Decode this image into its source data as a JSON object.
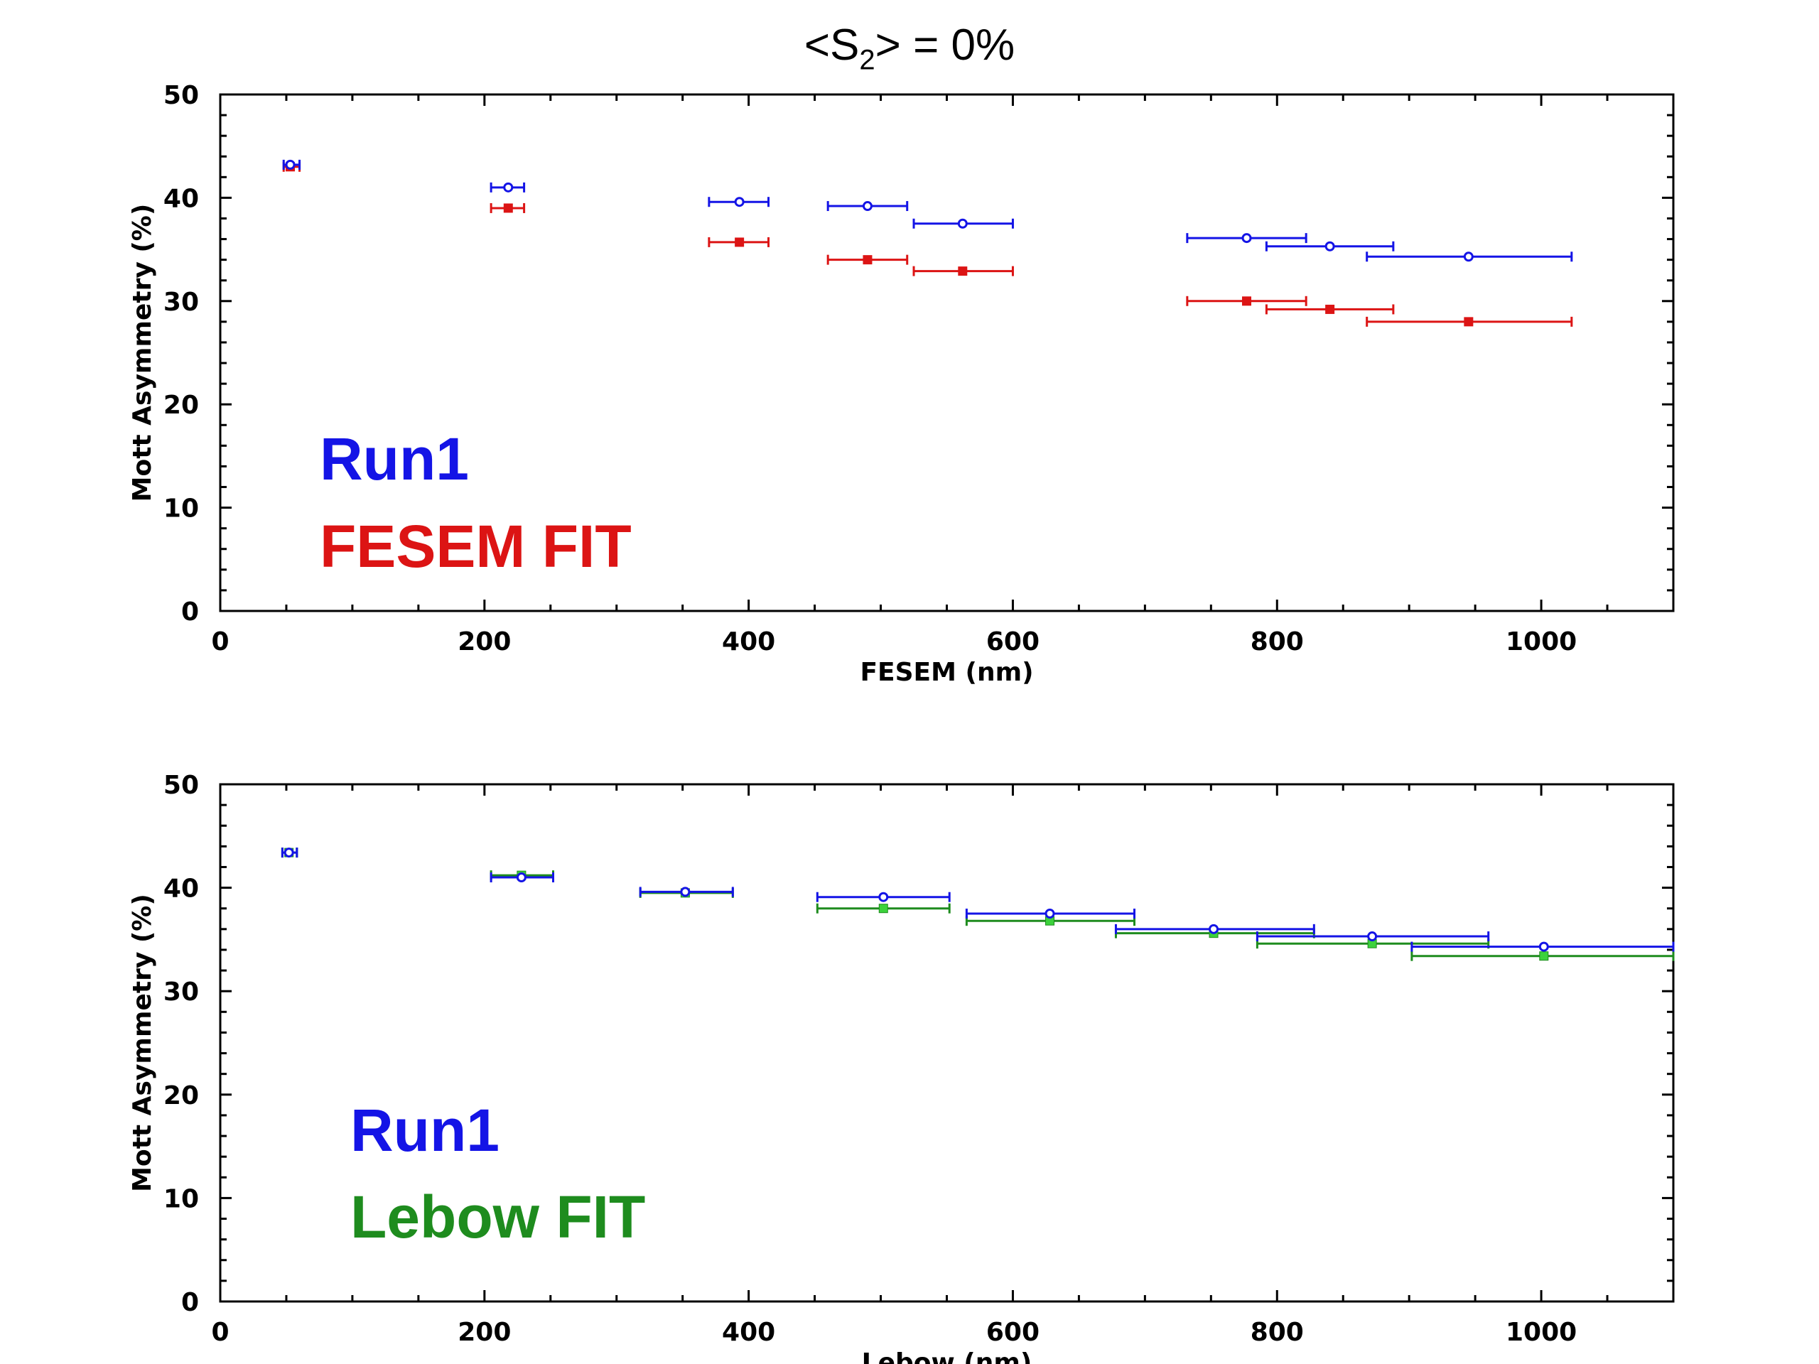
{
  "title": {
    "prefix": "<S",
    "sub": "2",
    "suffix": "> = 0%"
  },
  "colors": {
    "run1": "#1414e6",
    "fesem": "#dc1414",
    "lebow": "#1e8c1e",
    "lebow_marker": "#3cd23c"
  },
  "chart_data": [
    {
      "type": "scatter",
      "xlabel": "FESEM (nm)",
      "ylabel": "Mott Asymmetry (%)",
      "xlim": [
        0,
        1100
      ],
      "ylim": [
        0,
        50
      ],
      "x_ticks": [
        0,
        200,
        400,
        600,
        800,
        1000
      ],
      "y_ticks": [
        0,
        10,
        20,
        30,
        40,
        50
      ],
      "legend": [
        "Run1",
        "FESEM FIT"
      ],
      "series": [
        {
          "name": "Run1",
          "color_key": "run1",
          "points": [
            {
              "x": 53,
              "xerr": [
                48,
                60
              ],
              "y": 43.2
            },
            {
              "x": 218,
              "xerr": [
                205,
                230
              ],
              "y": 41.0
            },
            {
              "x": 393,
              "xerr": [
                370,
                415
              ],
              "y": 39.6
            },
            {
              "x": 490,
              "xerr": [
                460,
                520
              ],
              "y": 39.2
            },
            {
              "x": 562,
              "xerr": [
                525,
                600
              ],
              "y": 37.5
            },
            {
              "x": 777,
              "xerr": [
                732,
                822
              ],
              "y": 36.1
            },
            {
              "x": 840,
              "xerr": [
                792,
                888
              ],
              "y": 35.3
            },
            {
              "x": 945,
              "xerr": [
                868,
                1023
              ],
              "y": 34.3
            }
          ]
        },
        {
          "name": "FESEM FIT",
          "color_key": "fesem",
          "points": [
            {
              "x": 53,
              "xerr": [
                48,
                60
              ],
              "y": 43.0
            },
            {
              "x": 218,
              "xerr": [
                205,
                230
              ],
              "y": 39.0
            },
            {
              "x": 393,
              "xerr": [
                370,
                415
              ],
              "y": 35.7
            },
            {
              "x": 490,
              "xerr": [
                460,
                520
              ],
              "y": 34.0
            },
            {
              "x": 562,
              "xerr": [
                525,
                600
              ],
              "y": 32.9
            },
            {
              "x": 777,
              "xerr": [
                732,
                822
              ],
              "y": 30.0
            },
            {
              "x": 840,
              "xerr": [
                792,
                888
              ],
              "y": 29.2
            },
            {
              "x": 945,
              "xerr": [
                868,
                1023
              ],
              "y": 28.0
            }
          ]
        }
      ]
    },
    {
      "type": "scatter",
      "xlabel": "Lebow (nm)",
      "ylabel": "Mott Asymmetry (%)",
      "xlim": [
        0,
        1100
      ],
      "ylim": [
        0,
        50
      ],
      "x_ticks": [
        0,
        200,
        400,
        600,
        800,
        1000
      ],
      "y_ticks": [
        0,
        10,
        20,
        30,
        40,
        50
      ],
      "legend": [
        "Run1",
        "Lebow FIT"
      ],
      "series": [
        {
          "name": "Run1",
          "color_key": "run1",
          "points": [
            {
              "x": 52,
              "xerr": [
                47,
                58
              ],
              "y": 43.4
            },
            {
              "x": 228,
              "xerr": [
                205,
                252
              ],
              "y": 41.0
            },
            {
              "x": 352,
              "xerr": [
                318,
                388
              ],
              "y": 39.6
            },
            {
              "x": 502,
              "xerr": [
                452,
                552
              ],
              "y": 39.1
            },
            {
              "x": 628,
              "xerr": [
                565,
                692
              ],
              "y": 37.5
            },
            {
              "x": 752,
              "xerr": [
                678,
                828
              ],
              "y": 36.0
            },
            {
              "x": 872,
              "xerr": [
                785,
                960
              ],
              "y": 35.3
            },
            {
              "x": 1002,
              "xerr": [
                902,
                1100
              ],
              "y": 34.3
            }
          ]
        },
        {
          "name": "Lebow FIT",
          "color_key": "lebow",
          "points": [
            {
              "x": 52,
              "xerr": [
                47,
                58
              ],
              "y": 43.4
            },
            {
              "x": 228,
              "xerr": [
                205,
                252
              ],
              "y": 41.2
            },
            {
              "x": 352,
              "xerr": [
                318,
                388
              ],
              "y": 39.5
            },
            {
              "x": 502,
              "xerr": [
                452,
                552
              ],
              "y": 38.0
            },
            {
              "x": 628,
              "xerr": [
                565,
                692
              ],
              "y": 36.8
            },
            {
              "x": 752,
              "xerr": [
                678,
                828
              ],
              "y": 35.6
            },
            {
              "x": 872,
              "xerr": [
                785,
                960
              ],
              "y": 34.6
            },
            {
              "x": 1002,
              "xerr": [
                902,
                1100
              ],
              "y": 33.4
            }
          ]
        }
      ]
    }
  ]
}
